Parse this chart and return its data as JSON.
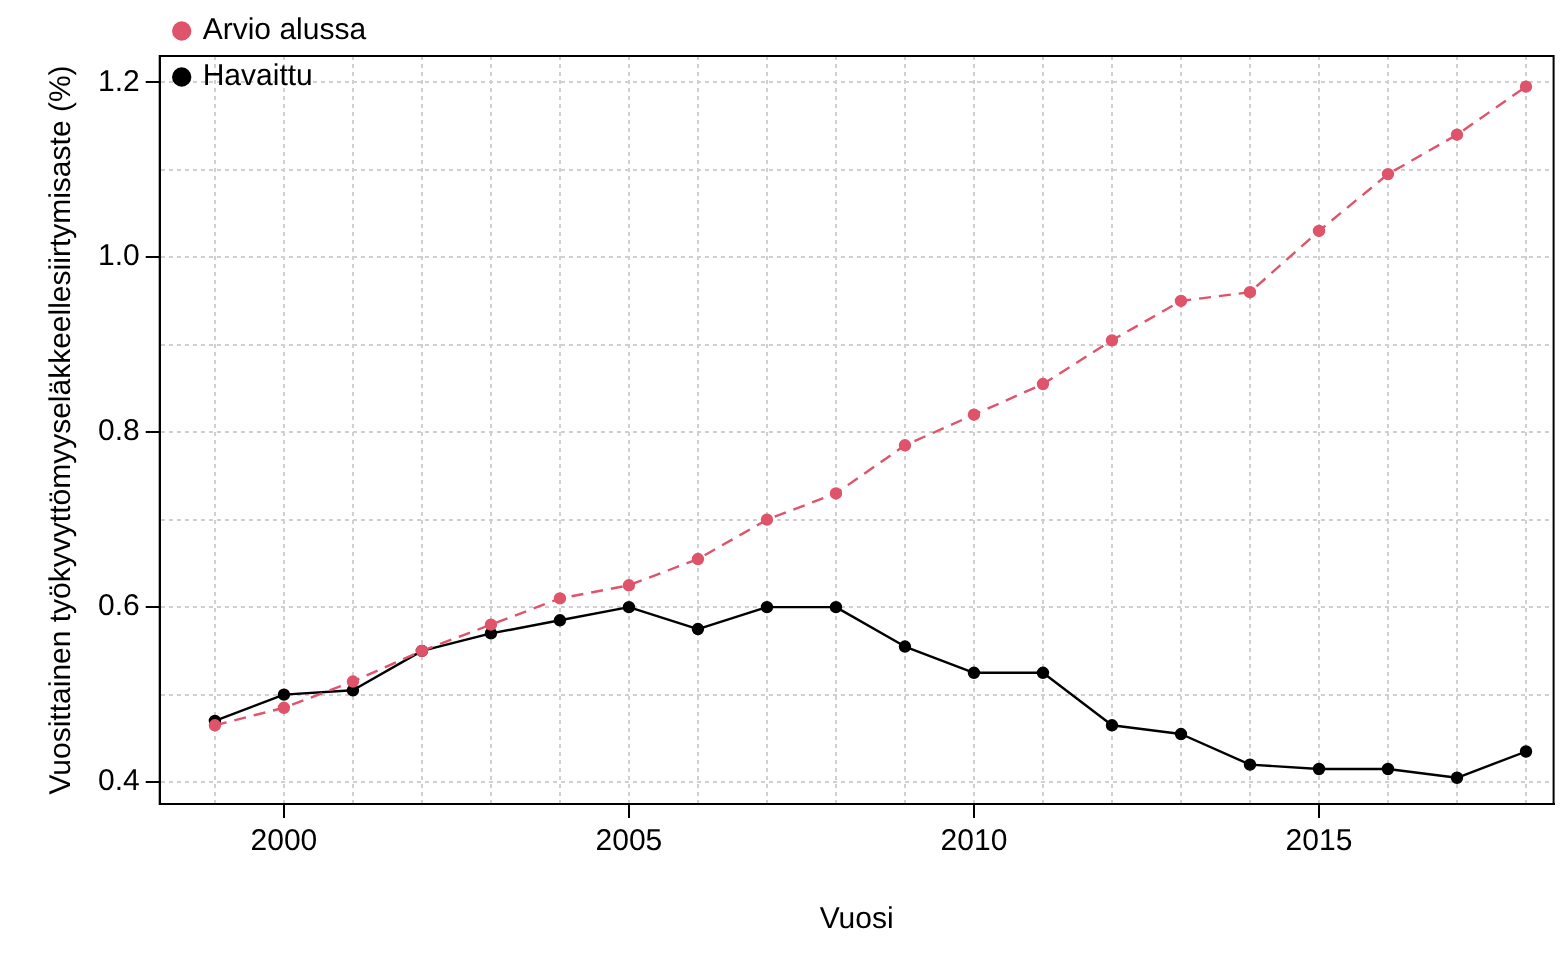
{
  "chart_data": {
    "type": "line",
    "xlabel": "Vuosi",
    "ylabel": "Vuosittainen työkyvyttömyyseläkkeellesiirtymisaste (%)",
    "x": [
      1999,
      2000,
      2001,
      2002,
      2003,
      2004,
      2005,
      2006,
      2007,
      2008,
      2009,
      2010,
      2011,
      2012,
      2013,
      2014,
      2015,
      2016,
      2017,
      2018
    ],
    "series": [
      {
        "name": "Havaittu",
        "color": "#000000",
        "line_style": "solid",
        "values": [
          0.47,
          0.5,
          0.505,
          0.55,
          0.57,
          0.585,
          0.6,
          0.575,
          0.6,
          0.6,
          0.555,
          0.525,
          0.525,
          0.465,
          0.455,
          0.42,
          0.415,
          0.415,
          0.405,
          0.435
        ]
      },
      {
        "name": "Arvio alussa",
        "color": "#df536b",
        "line_style": "dashed",
        "values": [
          0.465,
          0.485,
          0.515,
          0.55,
          0.58,
          0.61,
          0.625,
          0.655,
          0.7,
          0.73,
          0.785,
          0.82,
          0.855,
          0.905,
          0.95,
          0.96,
          1.03,
          1.095,
          1.14,
          1.195
        ]
      }
    ],
    "xlim": [
      1998.2,
      2018.4
    ],
    "ylim": [
      0.375,
      1.23
    ],
    "xticks": [
      {
        "value": 1999,
        "label": null
      },
      2000,
      {
        "value": 2001,
        "label": null
      },
      {
        "value": 2002,
        "label": null
      },
      {
        "value": 2003,
        "label": null
      },
      {
        "value": 2004,
        "label": null
      },
      2005,
      {
        "value": 2006,
        "label": null
      },
      {
        "value": 2007,
        "label": null
      },
      {
        "value": 2008,
        "label": null
      },
      {
        "value": 2009,
        "label": null
      },
      2010,
      {
        "value": 2011,
        "label": null
      },
      {
        "value": 2012,
        "label": null
      },
      {
        "value": 2013,
        "label": null
      },
      {
        "value": 2014,
        "label": null
      },
      2015,
      {
        "value": 2016,
        "label": null
      },
      {
        "value": 2017,
        "label": null
      },
      {
        "value": 2018,
        "label": null
      }
    ],
    "yticks": [
      {
        "value": 0.4,
        "label": "0.4"
      },
      {
        "value": 0.5,
        "label": null
      },
      {
        "value": 0.6,
        "label": "0.6"
      },
      {
        "value": 0.7,
        "label": null
      },
      {
        "value": 0.8,
        "label": "0.8"
      },
      {
        "value": 0.9,
        "label": null
      },
      {
        "value": 1.0,
        "label": "1.0"
      },
      {
        "value": 1.1,
        "label": null
      },
      {
        "value": 1.2,
        "label": "1.2"
      }
    ],
    "grid": true,
    "legend": "top left",
    "marker": "circle"
  }
}
